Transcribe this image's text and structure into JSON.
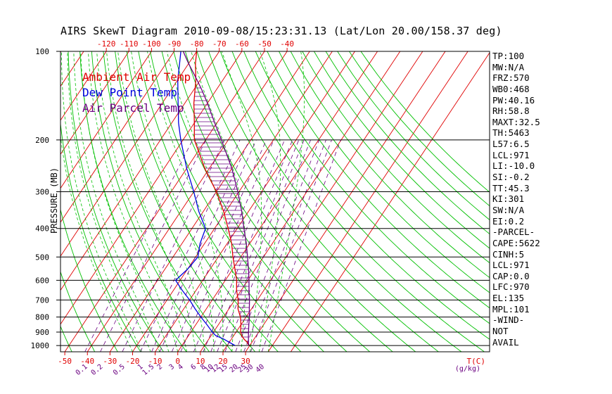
{
  "title": "AIRS SkewT Diagram 2010-09-08/15:23:31.13 (Lat/Lon 20.00/158.37 deg)",
  "colors": {
    "ambient": "#e00000",
    "dewpoint": "#0000e0",
    "parcel": "#6a0080",
    "isotherm": "#e00000",
    "dry_adiabat": "#00c000",
    "moist_adiabat": "#00c000",
    "mixing_ratio": "#6a0080",
    "hatch": "#6a0080"
  },
  "legend": [
    {
      "label": "Ambient Air Temp",
      "color": "#e00000"
    },
    {
      "label": "Dew Point Temp",
      "color": "#0000e0"
    },
    {
      "label": "Air Parcel Temp",
      "color": "#6a0080"
    }
  ],
  "indices": [
    "TP:100",
    "MW:N/A",
    "FRZ:570",
    "WB0:468",
    "PW:40.16",
    "RH:58.8",
    "MAXT:32.5",
    "TH:5463",
    "L57:6.5",
    "LCL:971",
    "LI:-10.0",
    "SI:-0.2",
    "TT:45.3",
    "KI:301",
    "SW:N/A",
    "EI:0.2",
    "-PARCEL-",
    "CAPE:5622",
    "CINH:5",
    "LCL:971",
    "CAP:0.0",
    "LFC:970",
    "EL:135",
    "MPL:101",
    "-WIND-",
    "NOT",
    "AVAIL"
  ],
  "chart_data": {
    "type": "line",
    "title": "AIRS SkewT Diagram 2010-09-08/15:23:31.13 (Lat/Lon 20.00/158.37 deg)",
    "ylabel": "PRESSURE (MB)",
    "xlabel": "T(C)",
    "ylim": [
      1050,
      100
    ],
    "pressure_ticks": [
      100,
      200,
      300,
      400,
      500,
      600,
      700,
      800,
      900,
      1000
    ],
    "pressure_tick_labels": [
      "100",
      "200",
      "300",
      "400",
      "500",
      "600",
      "700",
      "800",
      "900",
      "1000"
    ],
    "bottom_temp_ticks": [
      -50,
      -40,
      -30,
      -20,
      -10,
      0,
      10,
      20,
      30
    ],
    "bottom_temp_labels": [
      "-50",
      "-40",
      "-30",
      "-20",
      "-10",
      "0",
      "10",
      "20",
      "30"
    ],
    "top_temp_ticks": [
      -120,
      -110,
      -100,
      -90,
      -80,
      -70,
      -60,
      -50,
      -40
    ],
    "top_temp_labels": [
      "-120",
      "-110",
      "-100",
      "-90",
      "-80",
      "-70",
      "-60",
      "-50",
      "-40"
    ],
    "mixing_ratio_ticks": [
      0.1,
      0.2,
      0.5,
      1,
      1.5,
      2,
      3,
      4,
      6,
      8,
      10,
      12,
      15,
      20,
      25,
      30,
      40
    ],
    "mixing_ratio_labels": [
      "0.1",
      "0.2",
      "0.5",
      "1",
      "1.5",
      "2",
      "3",
      "4",
      "6",
      "8",
      "10",
      "12",
      "15",
      "20",
      "25",
      "30",
      "40"
    ],
    "mixing_ratio_unit": "(g/kg)",
    "series": [
      {
        "name": "Ambient Air Temp",
        "points": [
          [
            1000,
            29.5
          ],
          [
            975,
            28.0
          ],
          [
            950,
            25.5
          ],
          [
            925,
            23.5
          ],
          [
            900,
            22.0
          ],
          [
            850,
            20.0
          ],
          [
            800,
            17.5
          ],
          [
            750,
            14.0
          ],
          [
            700,
            11.5
          ],
          [
            650,
            8.0
          ],
          [
            600,
            5.0
          ],
          [
            550,
            1.0
          ],
          [
            500,
            -3.5
          ],
          [
            450,
            -8.0
          ],
          [
            400,
            -14.0
          ],
          [
            350,
            -21.0
          ],
          [
            300,
            -30.0
          ],
          [
            250,
            -42.0
          ],
          [
            200,
            -55.0
          ],
          [
            175,
            -60.0
          ],
          [
            150,
            -66.0
          ],
          [
            125,
            -72.0
          ],
          [
            110,
            -77.0
          ],
          [
            100,
            -80.0
          ]
        ]
      },
      {
        "name": "Dew Point Temp",
        "points": [
          [
            1000,
            23.5
          ],
          [
            975,
            20.0
          ],
          [
            950,
            16.5
          ],
          [
            925,
            12.0
          ],
          [
            900,
            9.5
          ],
          [
            850,
            5.0
          ],
          [
            800,
            0.0
          ],
          [
            750,
            -5.0
          ],
          [
            700,
            -10.0
          ],
          [
            650,
            -16.0
          ],
          [
            600,
            -22.0
          ],
          [
            550,
            -20.0
          ],
          [
            500,
            -19.0
          ],
          [
            450,
            -22.0
          ],
          [
            400,
            -24.0
          ],
          [
            350,
            -32.0
          ],
          [
            300,
            -40.0
          ],
          [
            250,
            -50.0
          ],
          [
            200,
            -61.0
          ],
          [
            175,
            -67.0
          ],
          [
            150,
            -73.0
          ],
          [
            125,
            -80.0
          ],
          [
            110,
            -84.0
          ],
          [
            100,
            -87.0
          ]
        ]
      },
      {
        "name": "Air Parcel Temp",
        "points": [
          [
            1000,
            29.5
          ],
          [
            975,
            28.5
          ],
          [
            950,
            27.5
          ],
          [
            925,
            26.5
          ],
          [
            900,
            25.5
          ],
          [
            850,
            23.5
          ],
          [
            800,
            21.5
          ],
          [
            750,
            19.0
          ],
          [
            700,
            16.5
          ],
          [
            650,
            13.5
          ],
          [
            600,
            10.5
          ],
          [
            550,
            7.0
          ],
          [
            500,
            3.0
          ],
          [
            450,
            -1.5
          ],
          [
            400,
            -7.0
          ],
          [
            350,
            -13.0
          ],
          [
            300,
            -20.5
          ],
          [
            250,
            -30.0
          ],
          [
            200,
            -43.0
          ],
          [
            175,
            -51.0
          ],
          [
            150,
            -60.0
          ],
          [
            135,
            -66.5
          ],
          [
            125,
            -71.5
          ],
          [
            110,
            -80.0
          ],
          [
            100,
            -86.0
          ]
        ]
      }
    ]
  }
}
